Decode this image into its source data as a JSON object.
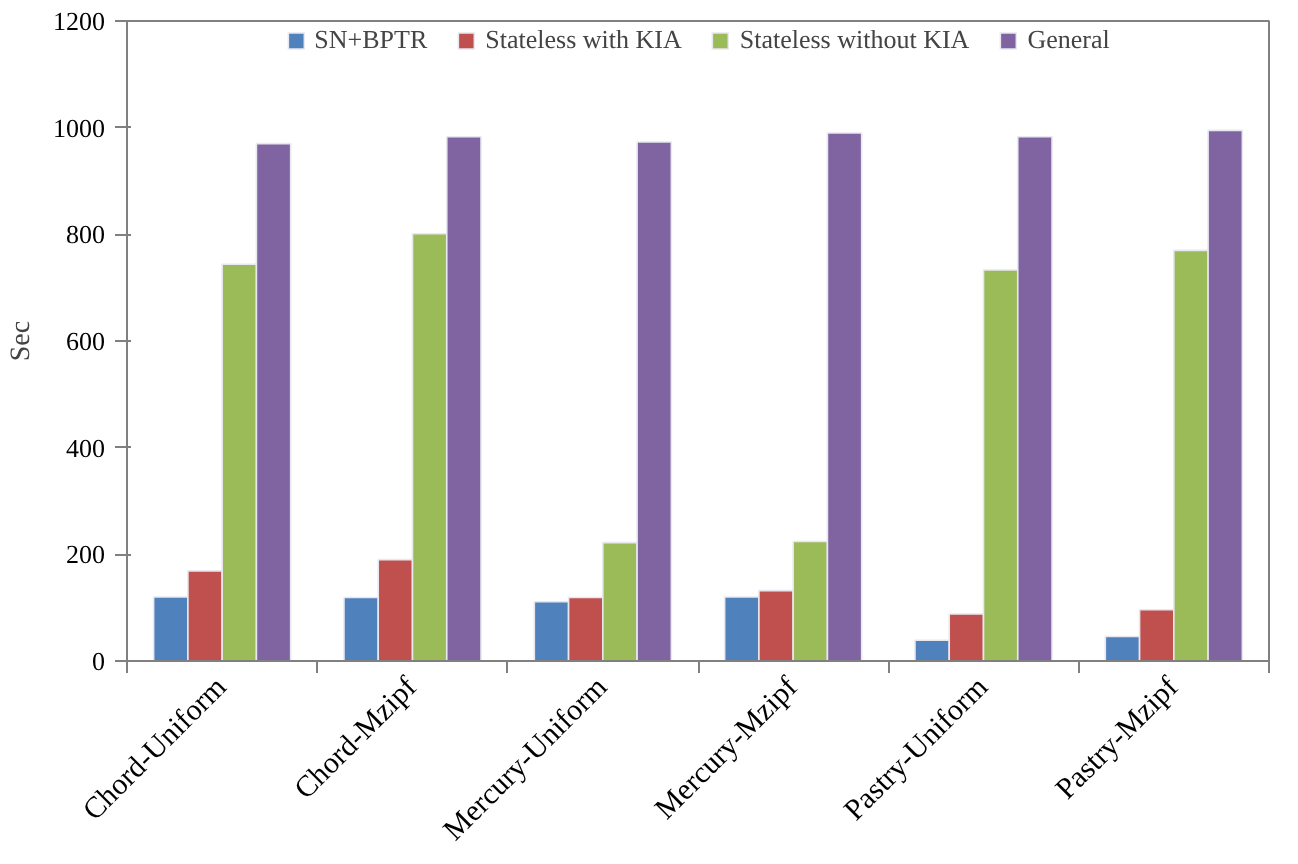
{
  "chart_data": {
    "type": "bar",
    "ylabel": "Sec",
    "categories": [
      "Chord-Uniform",
      "Chord-Mzipf",
      "Mercury-Uniform",
      "Mercury-Mzipf",
      "Pastry-Uniform",
      "Pastry-Mzipf"
    ],
    "series": [
      {
        "name": "SN+BPTR",
        "color": "#4f81bd",
        "values": [
          120,
          119,
          111,
          120,
          39,
          46
        ]
      },
      {
        "name": "Stateless with KIA",
        "color": "#c0504d",
        "values": [
          169,
          190,
          119,
          132,
          88,
          96
        ]
      },
      {
        "name": "Stateless without KIA",
        "color": "#9bbb59",
        "values": [
          744,
          801,
          222,
          224,
          733,
          770
        ]
      },
      {
        "name": "General",
        "color": "#8064a2",
        "values": [
          970,
          983,
          973,
          990,
          983,
          995
        ]
      }
    ],
    "ylim": [
      0,
      1200
    ],
    "yticks": [
      0,
      200,
      400,
      600,
      800,
      1000,
      1200
    ],
    "grid": false,
    "legend": "top"
  }
}
